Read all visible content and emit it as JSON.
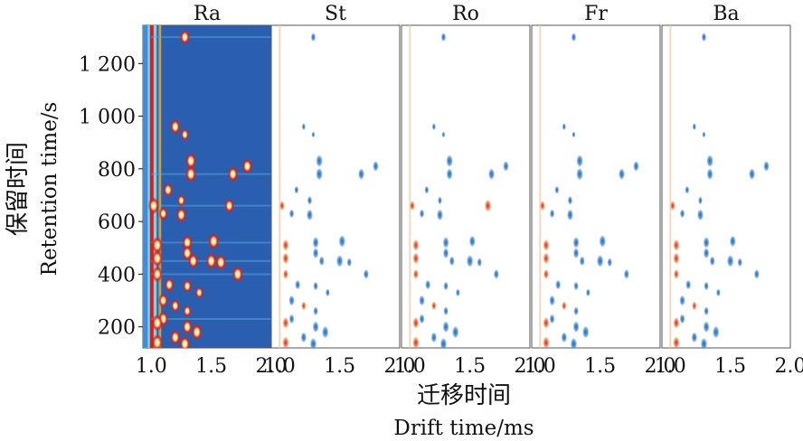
{
  "chart_data": {
    "type": "heatmap",
    "panels": [
      {
        "name": "Ra",
        "type": "reference"
      },
      {
        "name": "St",
        "type": "difference"
      },
      {
        "name": "Ro",
        "type": "difference"
      },
      {
        "name": "Fr",
        "type": "difference"
      },
      {
        "name": "Ba",
        "type": "difference"
      }
    ],
    "xlabel_cn": "迁移时间",
    "xlabel_en": "Drift time/ms",
    "ylabel_cn": "保留时间",
    "ylabel_en": "Retention time/s",
    "xlim": [
      0.93,
      2.0
    ],
    "ylim": [
      120,
      1345
    ],
    "xticks": [
      1.0,
      1.5,
      2.0
    ],
    "xtick_labels": [
      "1.0",
      "1.5",
      "2.0"
    ],
    "yticks": [
      200,
      400,
      600,
      800,
      1000,
      1200
    ],
    "ytick_labels": [
      "200",
      "400",
      "600",
      "800",
      "1 000",
      "1 200"
    ],
    "reactant_ion_peak_x": 1.0,
    "reference_background_color": "#2a5fb0",
    "difference_background_color": "#ffffff",
    "increase_color": "#d42020",
    "decrease_color": "#2b6fc4",
    "peaks": [
      {
        "x": 1.28,
        "y": 1300,
        "ref": 0.85,
        "diff": [
          -0.5,
          -0.5,
          -0.5,
          -0.5
        ]
      },
      {
        "x": 1.2,
        "y": 960,
        "ref": 0.9,
        "diff": [
          -0.3,
          -0.3,
          -0.3,
          -0.3
        ]
      },
      {
        "x": 1.28,
        "y": 930,
        "ref": 0.6,
        "diff": [
          -0.2,
          -0.2,
          -0.2,
          -0.2
        ]
      },
      {
        "x": 1.33,
        "y": 830,
        "ref": 1.0,
        "diff": [
          -0.9,
          -0.9,
          -0.9,
          -0.9
        ]
      },
      {
        "x": 1.33,
        "y": 780,
        "ref": 1.0,
        "diff": [
          -0.9,
          -0.8,
          -0.9,
          -0.8
        ]
      },
      {
        "x": 1.68,
        "y": 780,
        "ref": 0.9,
        "diff": [
          -0.8,
          -0.8,
          -0.8,
          -0.8
        ]
      },
      {
        "x": 1.8,
        "y": 810,
        "ref": 0.9,
        "diff": [
          -0.7,
          -0.7,
          -0.7,
          -0.7
        ]
      },
      {
        "x": 1.14,
        "y": 720,
        "ref": 0.8,
        "diff": [
          -0.4,
          -0.4,
          -0.4,
          -0.4
        ]
      },
      {
        "x": 1.25,
        "y": 680,
        "ref": 0.6,
        "diff": [
          -0.5,
          -0.4,
          -0.5,
          -0.4
        ]
      },
      {
        "x": 1.25,
        "y": 625,
        "ref": 0.9,
        "diff": [
          -0.8,
          -0.8,
          -0.8,
          -0.8
        ]
      },
      {
        "x": 1.1,
        "y": 630,
        "ref": 0.7,
        "diff": [
          -0.5,
          -0.5,
          -0.5,
          -0.5
        ]
      },
      {
        "x": 1.65,
        "y": 660,
        "ref": 0.8,
        "diff": [
          0.0,
          0.9,
          0.0,
          0.0
        ]
      },
      {
        "x": 1.02,
        "y": 660,
        "ref": 1.0,
        "diff": [
          0.6,
          0.6,
          0.6,
          0.6
        ]
      },
      {
        "x": 1.05,
        "y": 510,
        "ref": 1.0,
        "diff": [
          0.8,
          0.8,
          0.8,
          0.8
        ]
      },
      {
        "x": 1.3,
        "y": 520,
        "ref": 0.9,
        "diff": [
          -0.8,
          -0.8,
          -0.8,
          -0.8
        ]
      },
      {
        "x": 1.52,
        "y": 525,
        "ref": 1.0,
        "diff": [
          -0.9,
          -0.8,
          -0.9,
          -0.8
        ]
      },
      {
        "x": 1.3,
        "y": 480,
        "ref": 0.9,
        "diff": [
          -0.7,
          -0.7,
          -0.7,
          -0.7
        ]
      },
      {
        "x": 1.05,
        "y": 460,
        "ref": 1.0,
        "diff": [
          0.8,
          0.8,
          0.8,
          0.8
        ]
      },
      {
        "x": 1.35,
        "y": 450,
        "ref": 0.9,
        "diff": [
          -0.6,
          -0.6,
          -0.6,
          -0.6
        ]
      },
      {
        "x": 1.5,
        "y": 450,
        "ref": 1.0,
        "diff": [
          -0.9,
          -0.9,
          -0.9,
          -0.9
        ]
      },
      {
        "x": 1.58,
        "y": 445,
        "ref": 1.0,
        "diff": [
          -0.5,
          -0.5,
          -0.5,
          -0.5
        ]
      },
      {
        "x": 1.72,
        "y": 400,
        "ref": 1.0,
        "diff": [
          -0.6,
          -0.6,
          -0.6,
          -0.6
        ]
      },
      {
        "x": 1.05,
        "y": 400,
        "ref": 0.9,
        "diff": [
          0.6,
          0.6,
          0.6,
          0.6
        ]
      },
      {
        "x": 1.15,
        "y": 360,
        "ref": 0.8,
        "diff": [
          -0.6,
          -0.6,
          -0.6,
          -0.6
        ]
      },
      {
        "x": 1.3,
        "y": 355,
        "ref": 0.7,
        "diff": [
          -0.5,
          -0.5,
          -0.5,
          -0.5
        ]
      },
      {
        "x": 1.4,
        "y": 330,
        "ref": 0.6,
        "diff": [
          -0.4,
          -0.4,
          -0.4,
          -0.4
        ]
      },
      {
        "x": 1.1,
        "y": 300,
        "ref": 0.8,
        "diff": [
          -0.7,
          -0.7,
          -0.7,
          -0.7
        ]
      },
      {
        "x": 1.2,
        "y": 280,
        "ref": 0.7,
        "diff": [
          0.5,
          0.5,
          0.5,
          0.5
        ]
      },
      {
        "x": 1.3,
        "y": 260,
        "ref": 0.6,
        "diff": [
          -0.5,
          -0.5,
          -0.5,
          -0.5
        ]
      },
      {
        "x": 1.1,
        "y": 230,
        "ref": 0.9,
        "diff": [
          -0.6,
          -0.6,
          -0.6,
          -0.6
        ]
      },
      {
        "x": 1.05,
        "y": 215,
        "ref": 1.0,
        "diff": [
          0.8,
          0.8,
          0.8,
          0.8
        ]
      },
      {
        "x": 1.3,
        "y": 200,
        "ref": 0.9,
        "diff": [
          -0.8,
          -0.8,
          -0.8,
          -0.8
        ]
      },
      {
        "x": 1.38,
        "y": 180,
        "ref": 1.0,
        "diff": [
          -0.9,
          -0.9,
          -0.9,
          -0.9
        ]
      },
      {
        "x": 1.2,
        "y": 160,
        "ref": 0.9,
        "diff": [
          -0.7,
          -0.7,
          -0.7,
          -0.7
        ]
      },
      {
        "x": 1.28,
        "y": 135,
        "ref": 1.0,
        "diff": [
          -0.9,
          -0.9,
          -0.9,
          -0.9
        ]
      },
      {
        "x": 1.05,
        "y": 140,
        "ref": 1.0,
        "diff": [
          0.9,
          0.9,
          0.9,
          0.9
        ]
      }
    ]
  }
}
